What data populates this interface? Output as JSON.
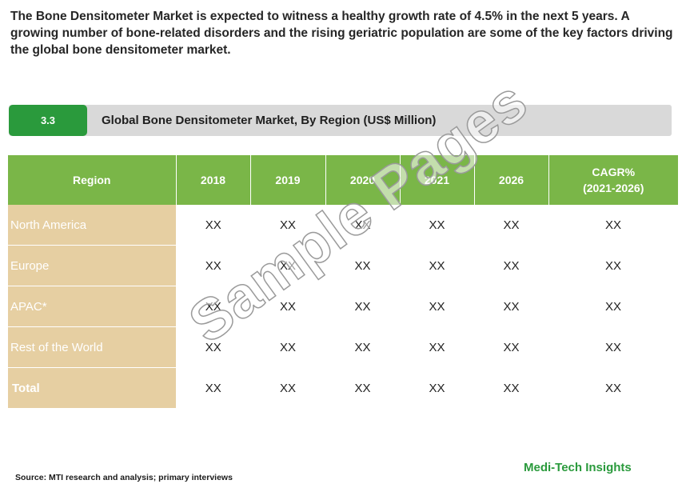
{
  "intro_text": "The Bone Densitometer Market is expected to witness a healthy growth rate of 4.5% in the next 5 years. A growing number of bone-related disorders and the rising geriatric population are some of the key factors driving the global bone densitometer market.",
  "section": {
    "number": "3.3",
    "title": "Global Bone Densitometer Market, By Region (US$ Million)"
  },
  "table": {
    "headers": [
      "Region",
      "2018",
      "2019",
      "2020",
      "2021",
      "2026",
      "CAGR%",
      "(2021-2026)"
    ],
    "rows": [
      {
        "region": "North America",
        "values": [
          "XX",
          "XX",
          "XX",
          "XX",
          "XX",
          "XX"
        ]
      },
      {
        "region": "Europe",
        "values": [
          "XX",
          "XX",
          "XX",
          "XX",
          "XX",
          "XX"
        ]
      },
      {
        "region": "APAC*",
        "values": [
          "XX",
          "XX",
          "XX",
          "XX",
          "XX",
          "XX"
        ]
      },
      {
        "region": "Rest of the World",
        "values": [
          "XX",
          "XX",
          "XX",
          "XX",
          "XX",
          "XX"
        ]
      },
      {
        "region": "Total",
        "values": [
          "XX",
          "XX",
          "XX",
          "XX",
          "XX",
          "XX"
        ]
      }
    ]
  },
  "watermark": "Sample Pages",
  "source": "Source: MTI research and analysis; primary interviews",
  "brand": "Medi-Tech Insights",
  "colors": {
    "accent_green": "#2a9a3c",
    "header_green": "#7ab648",
    "region_tan": "#e6cfa2",
    "bar_gray": "#d9d9d9"
  }
}
